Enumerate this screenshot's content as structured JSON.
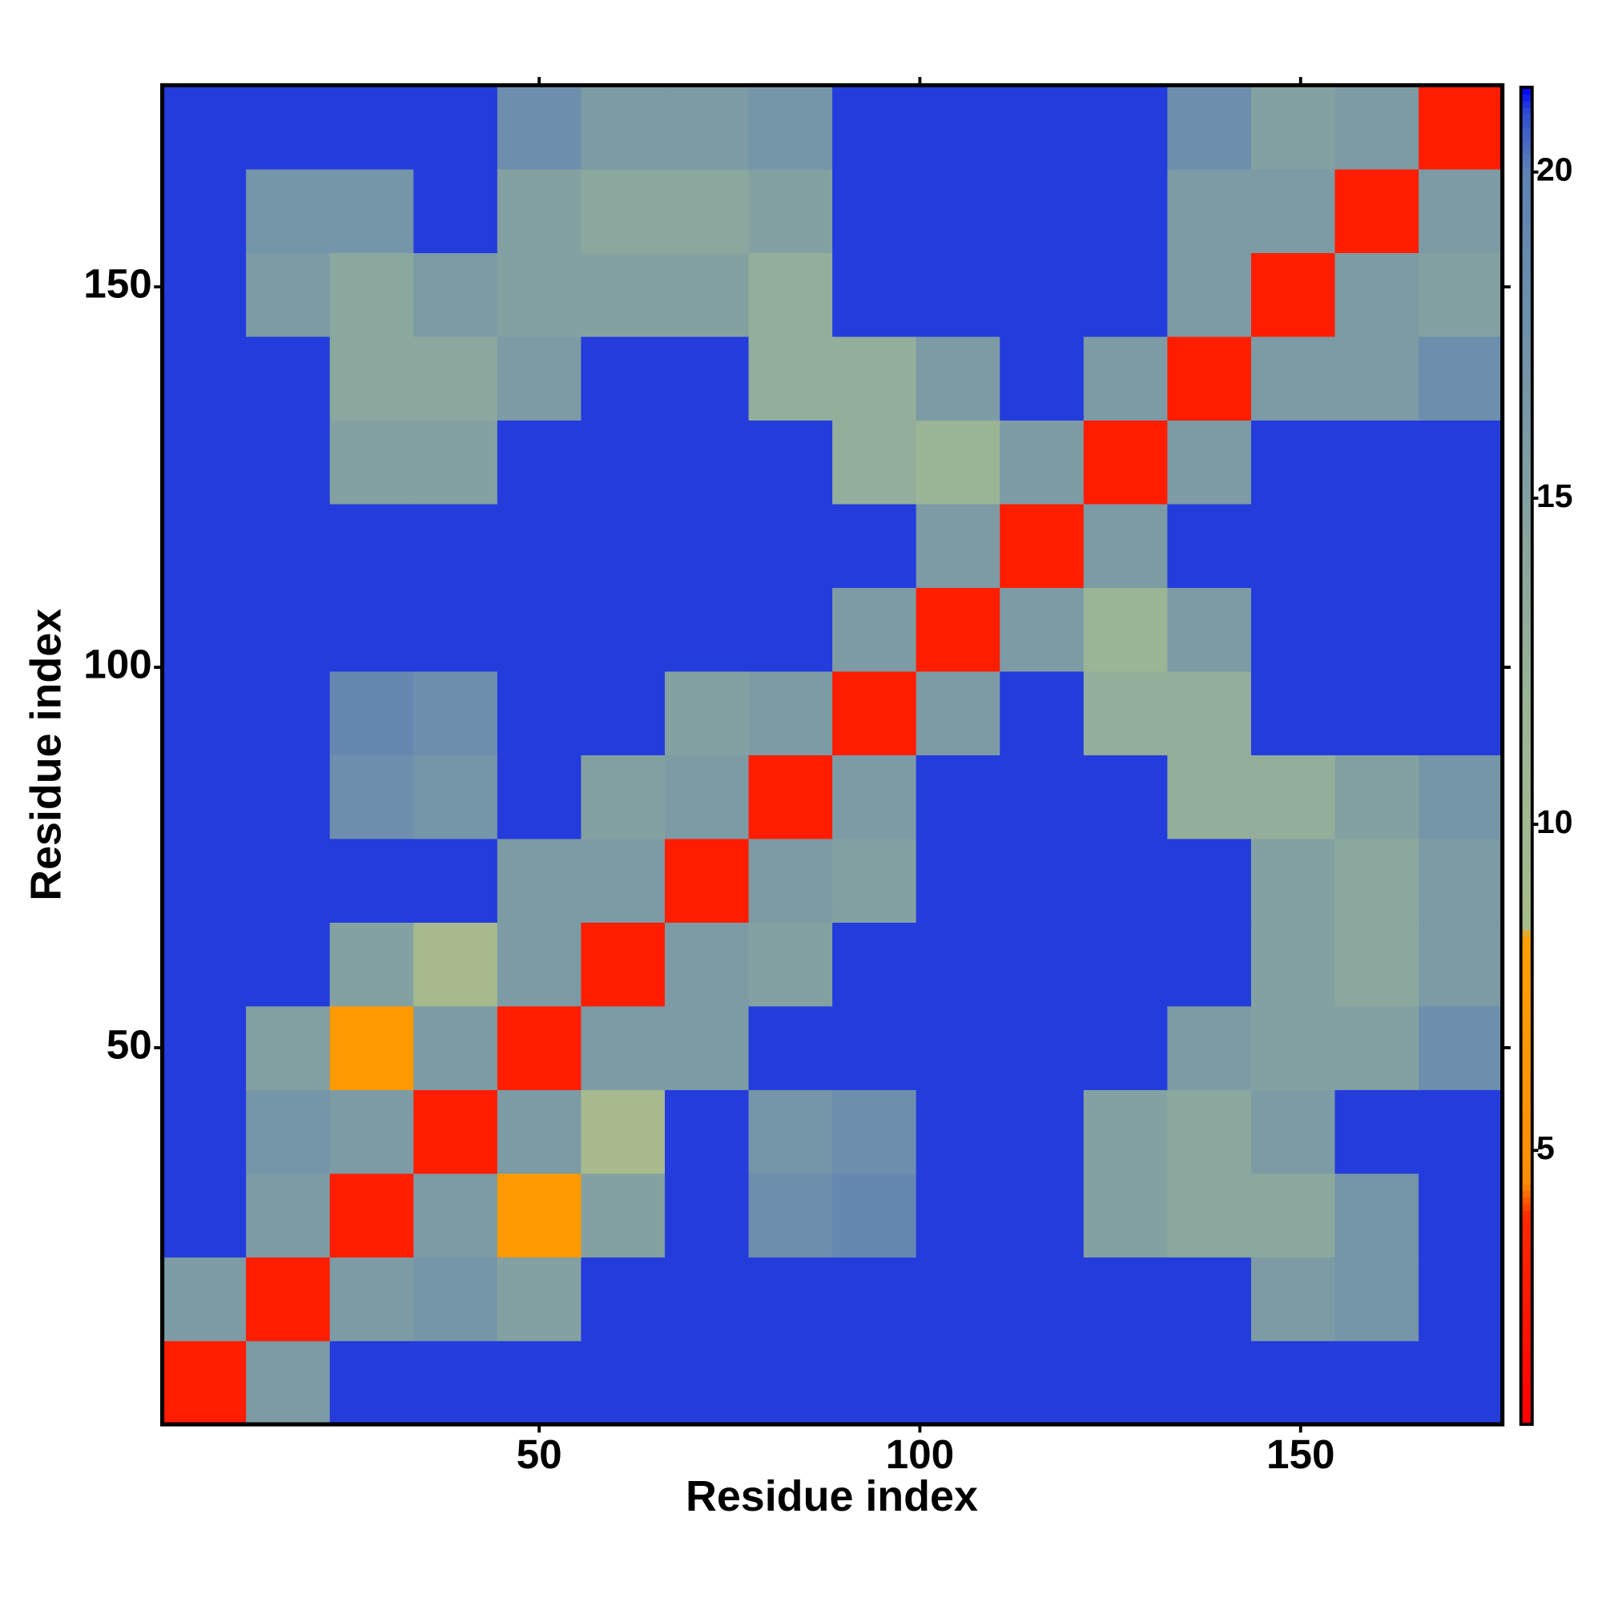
{
  "chart_data": {
    "type": "heatmap",
    "x_label": "Residue index",
    "y_label": "Residue index",
    "xbins": [
      0.5,
      11.5,
      22.5,
      33.5,
      44.5,
      55.5,
      66.5,
      77.5,
      88.5,
      99.5,
      110.5,
      121.5,
      132.5,
      143.5,
      154.5,
      165.5,
      176.5
    ],
    "ybins": [
      0.5,
      11.5,
      22.5,
      33.5,
      44.5,
      55.5,
      66.5,
      77.5,
      88.5,
      99.5,
      110.5,
      121.5,
      132.5,
      143.5,
      154.5,
      165.5,
      176.5
    ],
    "values": [
      [
        3,
        16,
        21,
        21,
        21,
        21,
        21,
        21,
        21,
        21,
        21,
        21,
        21,
        21,
        21,
        21
      ],
      [
        16,
        3,
        16,
        17,
        15,
        21,
        21,
        21,
        21,
        21,
        21,
        21,
        21,
        16,
        17,
        21
      ],
      [
        21,
        16,
        3,
        16,
        7,
        15,
        21,
        18,
        19,
        21,
        21,
        15,
        14,
        14,
        17,
        21
      ],
      [
        21,
        17,
        16,
        3,
        16,
        9,
        21,
        17,
        18,
        21,
        21,
        15,
        14,
        16,
        21,
        21
      ],
      [
        21,
        15,
        7,
        16,
        3,
        16,
        16,
        21,
        21,
        21,
        21,
        21,
        16,
        15,
        15,
        18
      ],
      [
        21,
        21,
        15,
        9,
        16,
        3,
        16,
        15,
        21,
        21,
        21,
        21,
        21,
        15,
        14,
        16
      ],
      [
        21,
        21,
        21,
        21,
        16,
        16,
        3,
        16,
        15,
        21,
        21,
        21,
        21,
        15,
        14,
        16
      ],
      [
        21,
        21,
        18,
        17,
        21,
        15,
        16,
        3,
        16,
        21,
        21,
        21,
        13,
        13,
        15,
        17
      ],
      [
        21,
        21,
        19,
        18,
        21,
        21,
        15,
        16,
        3,
        16,
        21,
        13,
        13,
        21,
        21,
        21
      ],
      [
        21,
        21,
        21,
        21,
        21,
        21,
        21,
        21,
        16,
        3,
        16,
        12,
        16,
        21,
        21,
        21
      ],
      [
        21,
        21,
        21,
        21,
        21,
        21,
        21,
        21,
        21,
        16,
        3,
        16,
        21,
        21,
        21,
        21
      ],
      [
        21,
        21,
        15,
        15,
        21,
        21,
        21,
        21,
        13,
        12,
        16,
        3,
        16,
        21,
        21,
        21
      ],
      [
        21,
        21,
        14,
        14,
        16,
        21,
        21,
        13,
        13,
        16,
        21,
        16,
        3,
        16,
        16,
        18
      ],
      [
        21,
        16,
        14,
        16,
        15,
        15,
        15,
        13,
        21,
        21,
        21,
        21,
        16,
        3,
        16,
        15
      ],
      [
        21,
        17,
        17,
        21,
        15,
        14,
        14,
        15,
        21,
        21,
        21,
        21,
        16,
        16,
        3,
        16
      ],
      [
        21,
        21,
        21,
        21,
        18,
        16,
        16,
        17,
        21,
        21,
        21,
        21,
        18,
        15,
        16,
        3
      ]
    ],
    "xlim": [
      0.5,
      176.5
    ],
    "ylim": [
      0.5,
      176.5
    ],
    "xticks": [
      50,
      100,
      150
    ],
    "yticks": [
      50,
      100,
      150
    ],
    "clim": [
      0.8,
      21.3
    ],
    "cticks": [
      5,
      10,
      15,
      20
    ],
    "colorscale": [
      [
        0.8,
        "#ff0000"
      ],
      [
        4,
        "#ff2a00"
      ],
      [
        4.5,
        "#ff8c00"
      ],
      [
        8.3,
        "#ffa000"
      ],
      [
        8.4,
        "#a8bb8c"
      ],
      [
        12,
        "#9ab496"
      ],
      [
        20,
        "#5e82b4"
      ],
      [
        20.9,
        "#3050d0"
      ],
      [
        21.3,
        "#0000ff"
      ]
    ]
  }
}
